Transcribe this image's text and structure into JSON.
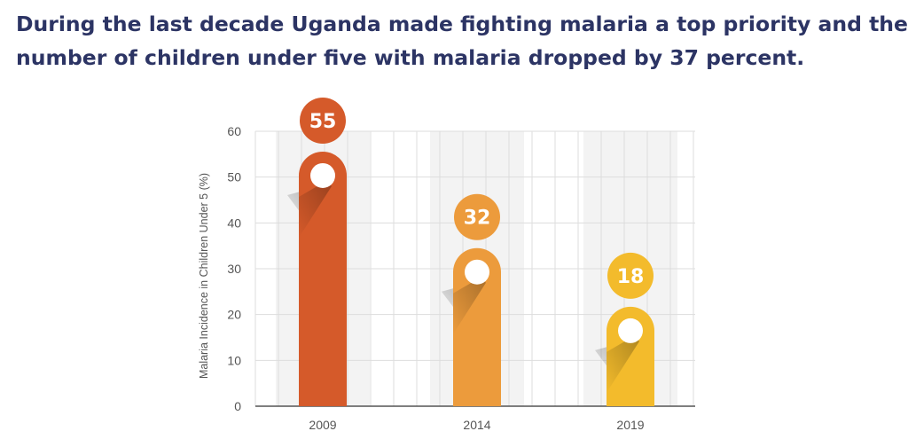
{
  "headline": {
    "line1": "During the last decade Uganda made fighting malaria a top priority and the",
    "line2": "number of children under five with malaria dropped by 37 percent."
  },
  "chart_data": {
    "type": "bar",
    "title": "During the last decade Uganda made fighting malaria a top priority and the number of children under five with malaria dropped by 37 percent.",
    "xlabel": "",
    "ylabel": "Malaria Incidence in Children Under 5 (%)",
    "categories": [
      "2009",
      "2014",
      "2019"
    ],
    "values": [
      55,
      32,
      18
    ],
    "data_labels": [
      "55",
      "32",
      "18"
    ],
    "ylim": [
      0,
      60
    ],
    "yticks": [
      0,
      10,
      20,
      30,
      40,
      50,
      60
    ],
    "grid": true,
    "colors": {
      "bars": [
        "#d55a2a",
        "#ec9b3c",
        "#f3bb2c"
      ],
      "grid": "#dddddd",
      "band": "#f3f3f3",
      "axis": "#555555",
      "headline": "#2c3464"
    }
  }
}
